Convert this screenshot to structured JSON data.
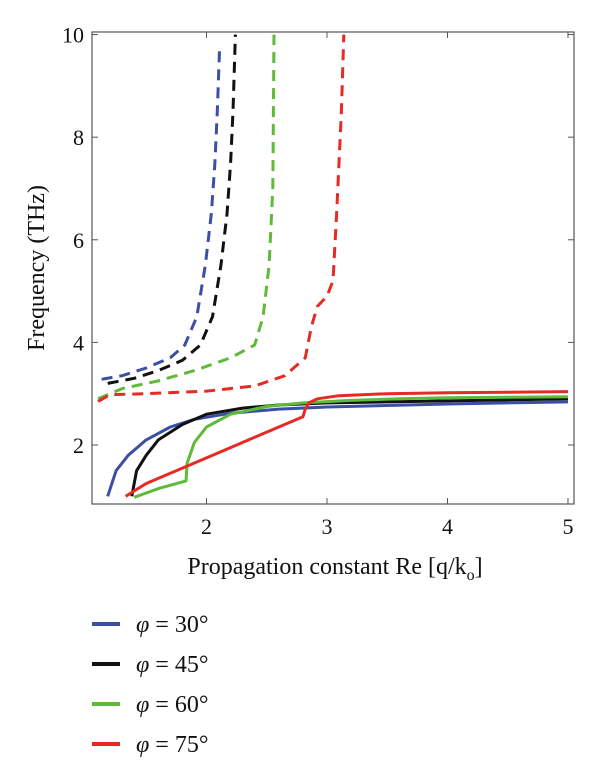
{
  "chart_data": {
    "type": "line",
    "xlabel": "Propagation constant Re [q/k",
    "xlabel_sub": "o",
    "xlabel_end": "]",
    "ylabel": "Frequency (THz)",
    "xlim": [
      1.05,
      5.05
    ],
    "ylim": [
      0.85,
      10.05
    ],
    "x_ticks": [
      2,
      3,
      4,
      5
    ],
    "y_ticks": [
      2,
      4,
      6,
      8,
      10
    ],
    "grid": false,
    "legend": {
      "position": "below",
      "entries": [
        {
          "symbol": "φ",
          "text": " = 30°",
          "color": "#3b4fa6"
        },
        {
          "symbol": "φ",
          "text": " = 45°",
          "color": "#111111"
        },
        {
          "symbol": "φ",
          "text": " = 60°",
          "color": "#5fba3a"
        },
        {
          "symbol": "φ",
          "text": " = 75°",
          "color": "#e62a24"
        }
      ]
    },
    "series": [
      {
        "legend_index": 0,
        "color": "#3b4fa6",
        "style": "solid",
        "x": [
          1.18,
          1.25,
          1.35,
          1.5,
          1.7,
          1.9,
          2.2,
          2.6,
          3.0,
          3.5,
          4.0,
          4.5,
          5.0
        ],
        "y": [
          1.0,
          1.5,
          1.8,
          2.1,
          2.35,
          2.5,
          2.62,
          2.7,
          2.74,
          2.77,
          2.8,
          2.82,
          2.84
        ]
      },
      {
        "legend_index": 0,
        "color": "#3b4fa6",
        "style": "dashed",
        "x": [
          1.13,
          1.3,
          1.5,
          1.7,
          1.82,
          1.92,
          1.99,
          2.04,
          2.07,
          2.09,
          2.11
        ],
        "y": [
          3.28,
          3.35,
          3.5,
          3.7,
          3.95,
          4.5,
          5.5,
          6.5,
          7.5,
          8.5,
          9.8
        ]
      },
      {
        "legend_index": 1,
        "color": "#111111",
        "style": "solid",
        "x": [
          1.38,
          1.42,
          1.5,
          1.6,
          1.8,
          2.0,
          2.3,
          2.6,
          3.0,
          3.5,
          4.0,
          4.5,
          5.0
        ],
        "y": [
          1.0,
          1.5,
          1.8,
          2.1,
          2.4,
          2.6,
          2.72,
          2.78,
          2.82,
          2.84,
          2.86,
          2.88,
          2.9
        ]
      },
      {
        "legend_index": 1,
        "color": "#111111",
        "style": "dashed",
        "x": [
          1.18,
          1.4,
          1.6,
          1.8,
          1.95,
          2.05,
          2.12,
          2.17,
          2.2,
          2.22,
          2.24
        ],
        "y": [
          3.2,
          3.3,
          3.45,
          3.65,
          3.95,
          4.5,
          5.5,
          6.5,
          7.5,
          8.5,
          10.0
        ]
      },
      {
        "legend_index": 2,
        "color": "#5fba3a",
        "style": "solid",
        "x": [
          1.4,
          1.6,
          1.83,
          1.84,
          1.9,
          2.0,
          2.2,
          2.5,
          2.8,
          3.2,
          3.6,
          4.0,
          4.5,
          5.0
        ],
        "y": [
          0.98,
          1.15,
          1.3,
          1.65,
          2.05,
          2.35,
          2.6,
          2.75,
          2.82,
          2.87,
          2.9,
          2.92,
          2.93,
          2.94
        ]
      },
      {
        "legend_index": 2,
        "color": "#5fba3a",
        "style": "dashed",
        "x": [
          1.1,
          1.3,
          1.6,
          1.9,
          2.2,
          2.4,
          2.47,
          2.52,
          2.55,
          2.56
        ],
        "y": [
          2.9,
          3.1,
          3.25,
          3.45,
          3.7,
          3.95,
          4.5,
          5.5,
          7.0,
          10.0
        ]
      },
      {
        "legend_index": 3,
        "color": "#e62a24",
        "style": "solid",
        "x": [
          1.33,
          1.5,
          1.8,
          2.1,
          2.4,
          2.6,
          2.8,
          2.82,
          2.85,
          2.92,
          3.1,
          3.5,
          4.0,
          4.5,
          5.0
        ],
        "y": [
          1.0,
          1.25,
          1.55,
          1.85,
          2.15,
          2.35,
          2.55,
          2.7,
          2.82,
          2.9,
          2.96,
          3.0,
          3.02,
          3.03,
          3.04
        ]
      },
      {
        "legend_index": 3,
        "color": "#e62a24",
        "style": "dashed",
        "x": [
          1.1,
          1.2,
          1.5,
          2.0,
          2.4,
          2.65,
          2.82,
          2.87,
          2.92,
          3.0,
          3.05,
          3.08,
          3.1,
          3.12,
          3.14
        ],
        "y": [
          2.85,
          2.98,
          3.0,
          3.05,
          3.15,
          3.35,
          3.7,
          4.3,
          4.7,
          4.9,
          5.2,
          6.5,
          7.5,
          8.5,
          10.0
        ]
      }
    ]
  }
}
